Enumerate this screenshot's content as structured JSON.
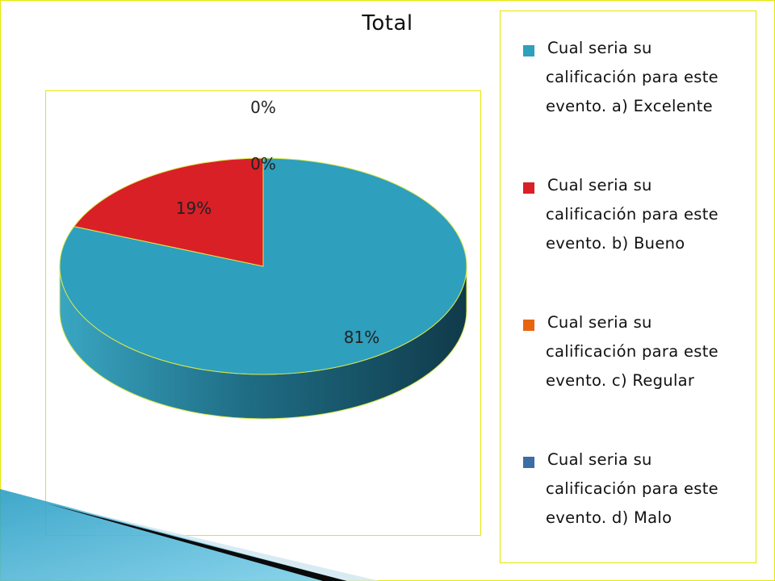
{
  "chart_data": {
    "type": "pie",
    "title": "Total",
    "categories": [
      "Cual seria su calificación para este evento. a) Excelente",
      "Cual seria su calificación para este evento. b) Bueno",
      "Cual seria su calificación para este evento. c) Regular",
      "Cual seria su calificación para este evento. d) Malo"
    ],
    "values": [
      81,
      19,
      0,
      0
    ],
    "data_labels": [
      "81%",
      "19%",
      "0%",
      "0%"
    ],
    "colors": [
      "#2e9fbd",
      "#d92027",
      "#e8650f",
      "#3a6ea5"
    ],
    "legend_placement": "right",
    "style": "3d"
  },
  "legend": {
    "items": [
      {
        "first": "Cual seria su",
        "rest": "calificación para este evento. a) Excelente",
        "color": "#2e9fbd"
      },
      {
        "first": "Cual seria su",
        "rest": "calificación para este evento. b) Bueno",
        "color": "#d92027"
      },
      {
        "first": "Cual seria su",
        "rest": "calificación para este evento. c) Regular",
        "color": "#e8650f"
      },
      {
        "first": "Cual seria su",
        "rest": "calificación para este evento. d) Malo",
        "color": "#3a6ea5"
      }
    ]
  }
}
